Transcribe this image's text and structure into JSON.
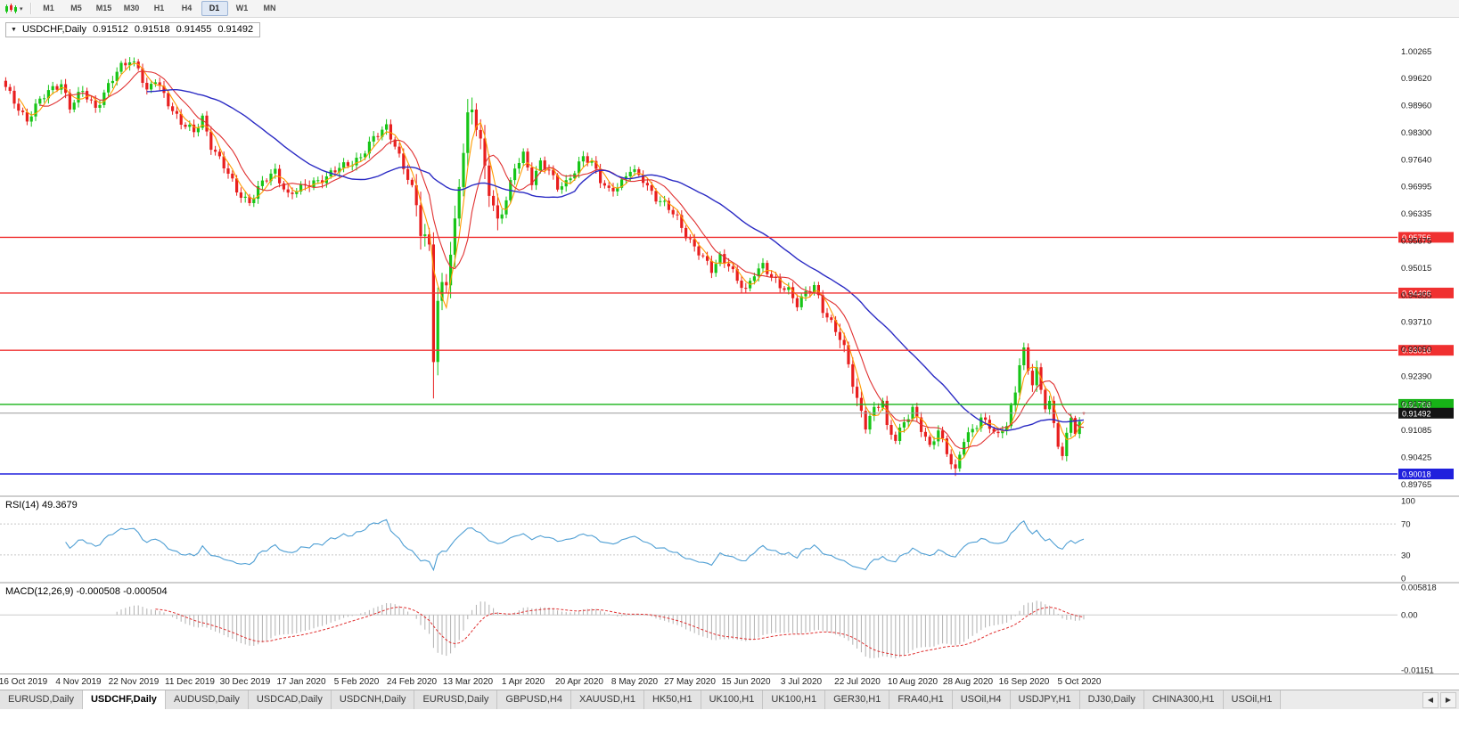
{
  "icons": {
    "toolbar_caret": "▾",
    "dropdown_caret": "▼",
    "tab_scroll_left": "◀",
    "tab_scroll_right": "▶"
  },
  "toolbar": {
    "timeframes": [
      "M1",
      "M5",
      "M15",
      "M30",
      "H1",
      "H4",
      "D1",
      "W1",
      "MN"
    ],
    "active_timeframe": "D1"
  },
  "chart": {
    "title": {
      "symbol": "USDCHF,Daily",
      "open": "0.91512",
      "high": "0.91518",
      "low": "0.91455",
      "close": "0.91492"
    }
  },
  "chart_data": [
    {
      "type": "candlestick",
      "symbol": "USDCHF",
      "timeframe": "Daily",
      "title": "USDCHF,Daily 0.91512 0.91518 0.91455 0.91492",
      "y_ticks": [
        "1.00265",
        "0.99620",
        "0.98960",
        "0.98300",
        "0.97640",
        "0.96995",
        "0.96335",
        "0.95675",
        "0.95015",
        "0.94355",
        "0.93710",
        "0.93050",
        "0.92390",
        "0.91730",
        "0.91085",
        "0.90425",
        "0.89765"
      ],
      "x_tick_labels": [
        "16 Oct 2019",
        "4 Nov 2019",
        "22 Nov 2019",
        "11 Dec 2019",
        "30 Dec 2019",
        "17 Jan 2020",
        "5 Feb 2020",
        "24 Feb 2020",
        "13 Mar 2020",
        "1 Apr 2020",
        "20 Apr 2020",
        "8 May 2020",
        "27 May 2020",
        "15 Jun 2020",
        "3 Jul 2020",
        "22 Jul 2020",
        "10 Aug 2020",
        "28 Aug 2020",
        "16 Sep 2020",
        "5 Oct 2020"
      ],
      "x_first_tick_index": 4,
      "x_tick_step_candles": 13,
      "horizontal_lines": [
        {
          "value": 0.95756,
          "label": "0.95756",
          "color": "#f03030",
          "role": "resistance"
        },
        {
          "value": 0.94406,
          "label": "0.94406",
          "color": "#f03030",
          "role": "resistance"
        },
        {
          "value": 0.93016,
          "label": "0.93016",
          "color": "#f03030",
          "role": "resistance"
        },
        {
          "value": 0.91706,
          "label": "0.91706",
          "color": "#17b317",
          "role": "level"
        },
        {
          "value": 0.90018,
          "label": "0.90018",
          "color": "#2020dd",
          "role": "support"
        }
      ],
      "current_price": {
        "value": 0.91492,
        "label": "0.91492",
        "badge_color": "#141414",
        "line_color": "#9a9a9a"
      },
      "last_candle": {
        "open": 0.91512,
        "high": 0.91518,
        "low": 0.91455,
        "close": 0.91492
      },
      "candles": {
        "count": 253,
        "anchors": [
          [
            0,
            0.9935
          ],
          [
            3,
            0.989
          ],
          [
            5,
            0.9862
          ],
          [
            8,
            0.9905
          ],
          [
            11,
            0.9938
          ],
          [
            13,
            0.9952
          ],
          [
            15,
            0.989
          ],
          [
            18,
            0.9928
          ],
          [
            21,
            0.9892
          ],
          [
            24,
            0.9942
          ],
          [
            27,
            0.9988
          ],
          [
            29,
            1.0008
          ],
          [
            31,
            0.999
          ],
          [
            33,
            0.9925
          ],
          [
            35,
            0.9955
          ],
          [
            38,
            0.9905
          ],
          [
            41,
            0.9852
          ],
          [
            44,
            0.9828
          ],
          [
            46,
            0.9868
          ],
          [
            48,
            0.98
          ],
          [
            51,
            0.9745
          ],
          [
            54,
            0.969
          ],
          [
            57,
            0.9662
          ],
          [
            60,
            0.9705
          ],
          [
            63,
            0.9738
          ],
          [
            66,
            0.9678
          ],
          [
            69,
            0.9692
          ],
          [
            72,
            0.9712
          ],
          [
            75,
            0.9722
          ],
          [
            79,
            0.9748
          ],
          [
            83,
            0.9772
          ],
          [
            86,
            0.9812
          ],
          [
            89,
            0.9846
          ],
          [
            91,
            0.9802
          ],
          [
            93,
            0.9742
          ],
          [
            95,
            0.969
          ],
          [
            97,
            0.9602
          ],
          [
            99,
            0.956
          ],
          [
            100,
            0.9302
          ],
          [
            101,
            0.9418
          ],
          [
            103,
            0.9462
          ],
          [
            105,
            0.9598
          ],
          [
            106,
            0.9712
          ],
          [
            107,
            0.9808
          ],
          [
            108,
            0.9872
          ],
          [
            109,
            0.9888
          ],
          [
            110,
            0.9852
          ],
          [
            111,
            0.9792
          ],
          [
            112,
            0.9725
          ],
          [
            114,
            0.9652
          ],
          [
            115,
            0.9612
          ],
          [
            117,
            0.9672
          ],
          [
            119,
            0.9742
          ],
          [
            121,
            0.9772
          ],
          [
            123,
            0.9712
          ],
          [
            125,
            0.9762
          ],
          [
            127,
            0.9738
          ],
          [
            129,
            0.9692
          ],
          [
            131,
            0.9706
          ],
          [
            133,
            0.9742
          ],
          [
            135,
            0.9772
          ],
          [
            137,
            0.9752
          ],
          [
            139,
            0.9712
          ],
          [
            141,
            0.9692
          ],
          [
            144,
            0.9708
          ],
          [
            146,
            0.9736
          ],
          [
            149,
            0.9718
          ],
          [
            152,
            0.9672
          ],
          [
            155,
            0.9642
          ],
          [
            157,
            0.9622
          ],
          [
            159,
            0.9585
          ],
          [
            161,
            0.9552
          ],
          [
            163,
            0.9522
          ],
          [
            165,
            0.9495
          ],
          [
            167,
            0.9532
          ],
          [
            169,
            0.9512
          ],
          [
            171,
            0.9468
          ],
          [
            173,
            0.9442
          ],
          [
            175,
            0.9492
          ],
          [
            177,
            0.9512
          ],
          [
            179,
            0.9478
          ],
          [
            181,
            0.9452
          ],
          [
            183,
            0.9448
          ],
          [
            185,
            0.9418
          ],
          [
            187,
            0.9442
          ],
          [
            189,
            0.9452
          ],
          [
            191,
            0.9398
          ],
          [
            193,
            0.9372
          ],
          [
            195,
            0.9338
          ],
          [
            197,
            0.9262
          ],
          [
            199,
            0.9172
          ],
          [
            201,
            0.9128
          ],
          [
            203,
            0.9162
          ],
          [
            205,
            0.9178
          ],
          [
            206,
            0.9108
          ],
          [
            208,
            0.9085
          ],
          [
            210,
            0.9132
          ],
          [
            212,
            0.9162
          ],
          [
            214,
            0.9108
          ],
          [
            216,
            0.9062
          ],
          [
            218,
            0.9112
          ],
          [
            220,
            0.9058
          ],
          [
            222,
            0.9006
          ],
          [
            224,
            0.9082
          ],
          [
            226,
            0.9108
          ],
          [
            228,
            0.9142
          ],
          [
            230,
            0.9118
          ],
          [
            232,
            0.9088
          ],
          [
            234,
            0.9122
          ],
          [
            236,
            0.9205
          ],
          [
            237,
            0.9282
          ],
          [
            238,
            0.9305
          ],
          [
            239,
            0.9245
          ],
          [
            240,
            0.9222
          ],
          [
            241,
            0.9252
          ],
          [
            242,
            0.9192
          ],
          [
            243,
            0.9165
          ],
          [
            244,
            0.9185
          ],
          [
            245,
            0.9122
          ],
          [
            246,
            0.9075
          ],
          [
            247,
            0.9052
          ],
          [
            248,
            0.9092
          ],
          [
            249,
            0.9132
          ],
          [
            250,
            0.9102
          ],
          [
            251,
            0.9122
          ],
          [
            252,
            0.91492
          ]
        ],
        "wicks": [
          {
            "index": 100,
            "low": 0.9185
          },
          {
            "index": 222,
            "low": 0.8997
          },
          {
            "index": 238,
            "high": 0.932
          }
        ]
      },
      "moving_averages": [
        {
          "name": "ma-fast-orange",
          "period": 4,
          "color": "#ff9b00"
        },
        {
          "name": "ma-mid-red",
          "period": 9,
          "color": "#e03131"
        },
        {
          "name": "ma-slow-blue",
          "period": 34,
          "color": "#2b2bc4"
        }
      ],
      "colors": {
        "bull": "#17c517",
        "bear": "#e81f1f",
        "background": "#ffffff"
      }
    },
    {
      "type": "line",
      "name": "RSI",
      "label": "RSI(14) 49.3679",
      "period": 14,
      "current": 49.3679,
      "range": [
        0,
        100
      ],
      "levels": [
        100,
        70,
        30,
        0
      ],
      "level_labels": [
        "100",
        "70",
        "30",
        "0"
      ],
      "dashed_levels": [
        70,
        30
      ],
      "color": "#4f9fd4"
    },
    {
      "type": "bar",
      "name": "MACD",
      "label": "MACD(12,26,9) -0.000508 -0.000504",
      "params": [
        12,
        26,
        9
      ],
      "main": -0.000508,
      "signal": -0.000504,
      "range": [
        -0.01151,
        0.005818
      ],
      "axis_values": [
        0.005818,
        0,
        -0.01151
      ],
      "axis_labels": [
        "0.005818",
        "0.00",
        "-0.01151"
      ],
      "histogram_color": "#b0b0b0",
      "signal_color": "#e03030",
      "zero_line_color": "#cccccc"
    }
  ],
  "tabs": {
    "items": [
      "EURUSD,Daily",
      "USDCHF,Daily",
      "AUDUSD,Daily",
      "USDCAD,Daily",
      "USDCNH,Daily",
      "EURUSD,Daily",
      "GBPUSD,H4",
      "XAUUSD,H1",
      "HK50,H1",
      "UK100,H1",
      "UK100,H1",
      "GER30,H1",
      "FRA40,H1",
      "USOil,H4",
      "USDJPY,H1",
      "DJ30,Daily",
      "CHINA300,H1",
      "USOil,H1"
    ],
    "active_index": 1
  }
}
